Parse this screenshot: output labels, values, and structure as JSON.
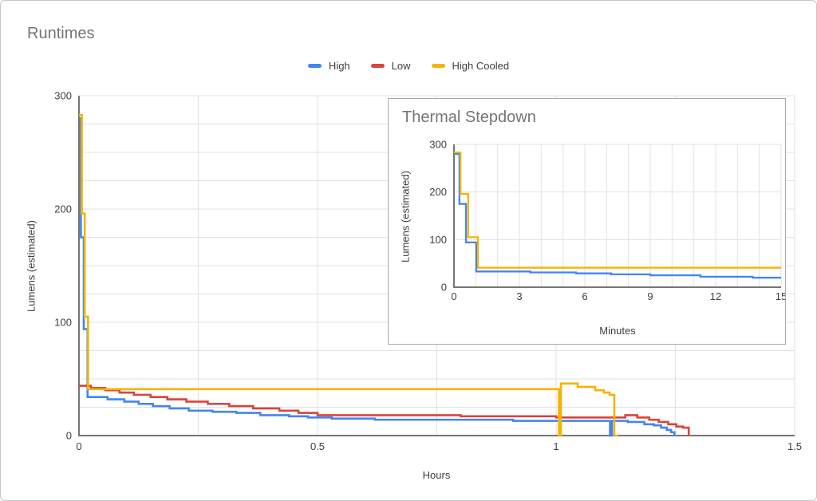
{
  "page": {
    "title": "Runtimes"
  },
  "legend": {
    "items": [
      {
        "label": "High",
        "color": "#4285F4"
      },
      {
        "label": "Low",
        "color": "#DB4437"
      },
      {
        "label": "High Cooled",
        "color": "#F4B400"
      }
    ]
  },
  "colors": {
    "blue": "#4285F4",
    "red": "#DB4437",
    "yellow": "#F4B400",
    "grid": "#e2e2e2",
    "axis": "#757575",
    "tick_text": "#3c4043",
    "title_text": "#757575",
    "frame_border": "#c6c6c6",
    "inset_border": "#a9a9a9"
  },
  "chart_data": [
    {
      "id": "main",
      "type": "line",
      "stepped": true,
      "title": "Runtimes",
      "xlabel": "Hours",
      "ylabel": "Lumens (estimated)",
      "xlim": [
        0,
        1.5
      ],
      "ylim": [
        0,
        300
      ],
      "x_minor_step": 0.25,
      "y_minor_step": 25,
      "grid": true,
      "legend_position": "top",
      "xticks": [
        {
          "v": 0,
          "label": "0"
        },
        {
          "v": 0.5,
          "label": "0.5"
        },
        {
          "v": 1,
          "label": "1"
        },
        {
          "v": 1.5,
          "label": "1.5"
        }
      ],
      "yticks": [
        {
          "v": 0,
          "label": "0"
        },
        {
          "v": 100,
          "label": "100"
        },
        {
          "v": 200,
          "label": "200"
        },
        {
          "v": 300,
          "label": "300"
        }
      ],
      "series": [
        {
          "name": "High",
          "color": "#4285F4",
          "points": [
            [
              0,
              280
            ],
            [
              0.004,
              175
            ],
            [
              0.01,
              94
            ],
            [
              0.018,
              34
            ],
            [
              0.06,
              32
            ],
            [
              0.095,
              30
            ],
            [
              0.125,
              28
            ],
            [
              0.155,
              26
            ],
            [
              0.19,
              24
            ],
            [
              0.23,
              22
            ],
            [
              0.28,
              21
            ],
            [
              0.33,
              20
            ],
            [
              0.38,
              18
            ],
            [
              0.44,
              17
            ],
            [
              0.48,
              16
            ],
            [
              0.53,
              15
            ],
            [
              0.62,
              14
            ],
            [
              0.91,
              13
            ],
            [
              1.113,
              0
            ],
            [
              1.117,
              13
            ],
            [
              1.15,
              12
            ],
            [
              1.185,
              10
            ],
            [
              1.205,
              9
            ],
            [
              1.22,
              7
            ],
            [
              1.232,
              5
            ],
            [
              1.241,
              3
            ],
            [
              1.248,
              0
            ]
          ]
        },
        {
          "name": "Low",
          "color": "#DB4437",
          "points": [
            [
              0,
              44
            ],
            [
              0.025,
              42
            ],
            [
              0.055,
              40
            ],
            [
              0.085,
              38
            ],
            [
              0.115,
              36
            ],
            [
              0.15,
              34
            ],
            [
              0.185,
              32
            ],
            [
              0.225,
              30
            ],
            [
              0.27,
              28
            ],
            [
              0.315,
              26
            ],
            [
              0.365,
              24
            ],
            [
              0.42,
              22
            ],
            [
              0.46,
              20
            ],
            [
              0.5,
              18
            ],
            [
              0.8,
              17
            ],
            [
              1.0,
              16
            ],
            [
              1.145,
              18
            ],
            [
              1.17,
              16
            ],
            [
              1.195,
              14
            ],
            [
              1.215,
              12
            ],
            [
              1.235,
              10
            ],
            [
              1.252,
              8
            ],
            [
              1.266,
              7
            ],
            [
              1.278,
              0
            ]
          ]
        },
        {
          "name": "High Cooled",
          "color": "#F4B400",
          "points": [
            [
              0,
              283
            ],
            [
              0.006,
              196
            ],
            [
              0.012,
              105
            ],
            [
              0.019,
              41
            ],
            [
              1.006,
              0
            ],
            [
              1.01,
              46
            ],
            [
              1.045,
              43
            ],
            [
              1.082,
              40
            ],
            [
              1.1,
              38
            ],
            [
              1.112,
              36
            ],
            [
              1.122,
              0
            ],
            [
              1.13,
              0
            ]
          ]
        }
      ]
    },
    {
      "id": "inset",
      "type": "line",
      "stepped": true,
      "title": "Thermal Stepdown",
      "xlabel": "Minutes",
      "ylabel": "Lumens (estimated)",
      "xlim": [
        0,
        15
      ],
      "ylim": [
        0,
        300
      ],
      "x_minor_step": 1,
      "y_minor_step": 100,
      "grid": true,
      "legend_position": "none",
      "xticks": [
        {
          "v": 0,
          "label": "0"
        },
        {
          "v": 3,
          "label": "3"
        },
        {
          "v": 6,
          "label": "6"
        },
        {
          "v": 9,
          "label": "9"
        },
        {
          "v": 12,
          "label": "12"
        },
        {
          "v": 15,
          "label": "15"
        }
      ],
      "yticks": [
        {
          "v": 0,
          "label": "0"
        },
        {
          "v": 100,
          "label": "100"
        },
        {
          "v": 200,
          "label": "200"
        },
        {
          "v": 300,
          "label": "300"
        }
      ],
      "series": [
        {
          "name": "High",
          "color": "#4285F4",
          "points": [
            [
              0,
              280
            ],
            [
              0.25,
              175
            ],
            [
              0.55,
              94
            ],
            [
              1.02,
              33
            ],
            [
              3.5,
              31
            ],
            [
              5.6,
              29
            ],
            [
              7.2,
              27
            ],
            [
              9.0,
              25
            ],
            [
              11.3,
              22
            ],
            [
              13.7,
              20
            ],
            [
              15,
              20
            ]
          ]
        },
        {
          "name": "High Cooled",
          "color": "#F4B400",
          "points": [
            [
              0,
              283
            ],
            [
              0.3,
              196
            ],
            [
              0.65,
              105
            ],
            [
              1.1,
              41
            ],
            [
              15,
              41
            ]
          ]
        }
      ]
    }
  ]
}
